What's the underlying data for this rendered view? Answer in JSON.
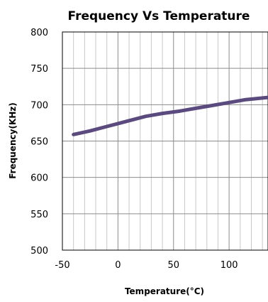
{
  "chart_data": {
    "type": "line",
    "title": "Frequency Vs Temperature",
    "xlabel": "Temperature(°C)",
    "ylabel": "Frequency(KHz)",
    "xlim": [
      -50,
      135
    ],
    "ylim": [
      500,
      800
    ],
    "x_ticks": [
      -50,
      0,
      50,
      100
    ],
    "y_ticks": [
      500,
      550,
      600,
      650,
      700,
      750,
      800
    ],
    "x_tick_labels": [
      "-50",
      "0",
      "50",
      "100"
    ],
    "y_tick_labels": [
      "500",
      "550",
      "600",
      "650",
      "700",
      "750",
      "800"
    ],
    "grid": true,
    "line_color": "#5b4a7e",
    "series": [
      {
        "x": [
          -40,
          -25,
          -10,
          0,
          10,
          25,
          40,
          55,
          70,
          85,
          100,
          115,
          135
        ],
        "y": [
          659,
          664,
          670,
          674,
          678,
          684,
          688,
          691,
          695,
          699,
          703,
          707,
          710
        ]
      }
    ]
  }
}
